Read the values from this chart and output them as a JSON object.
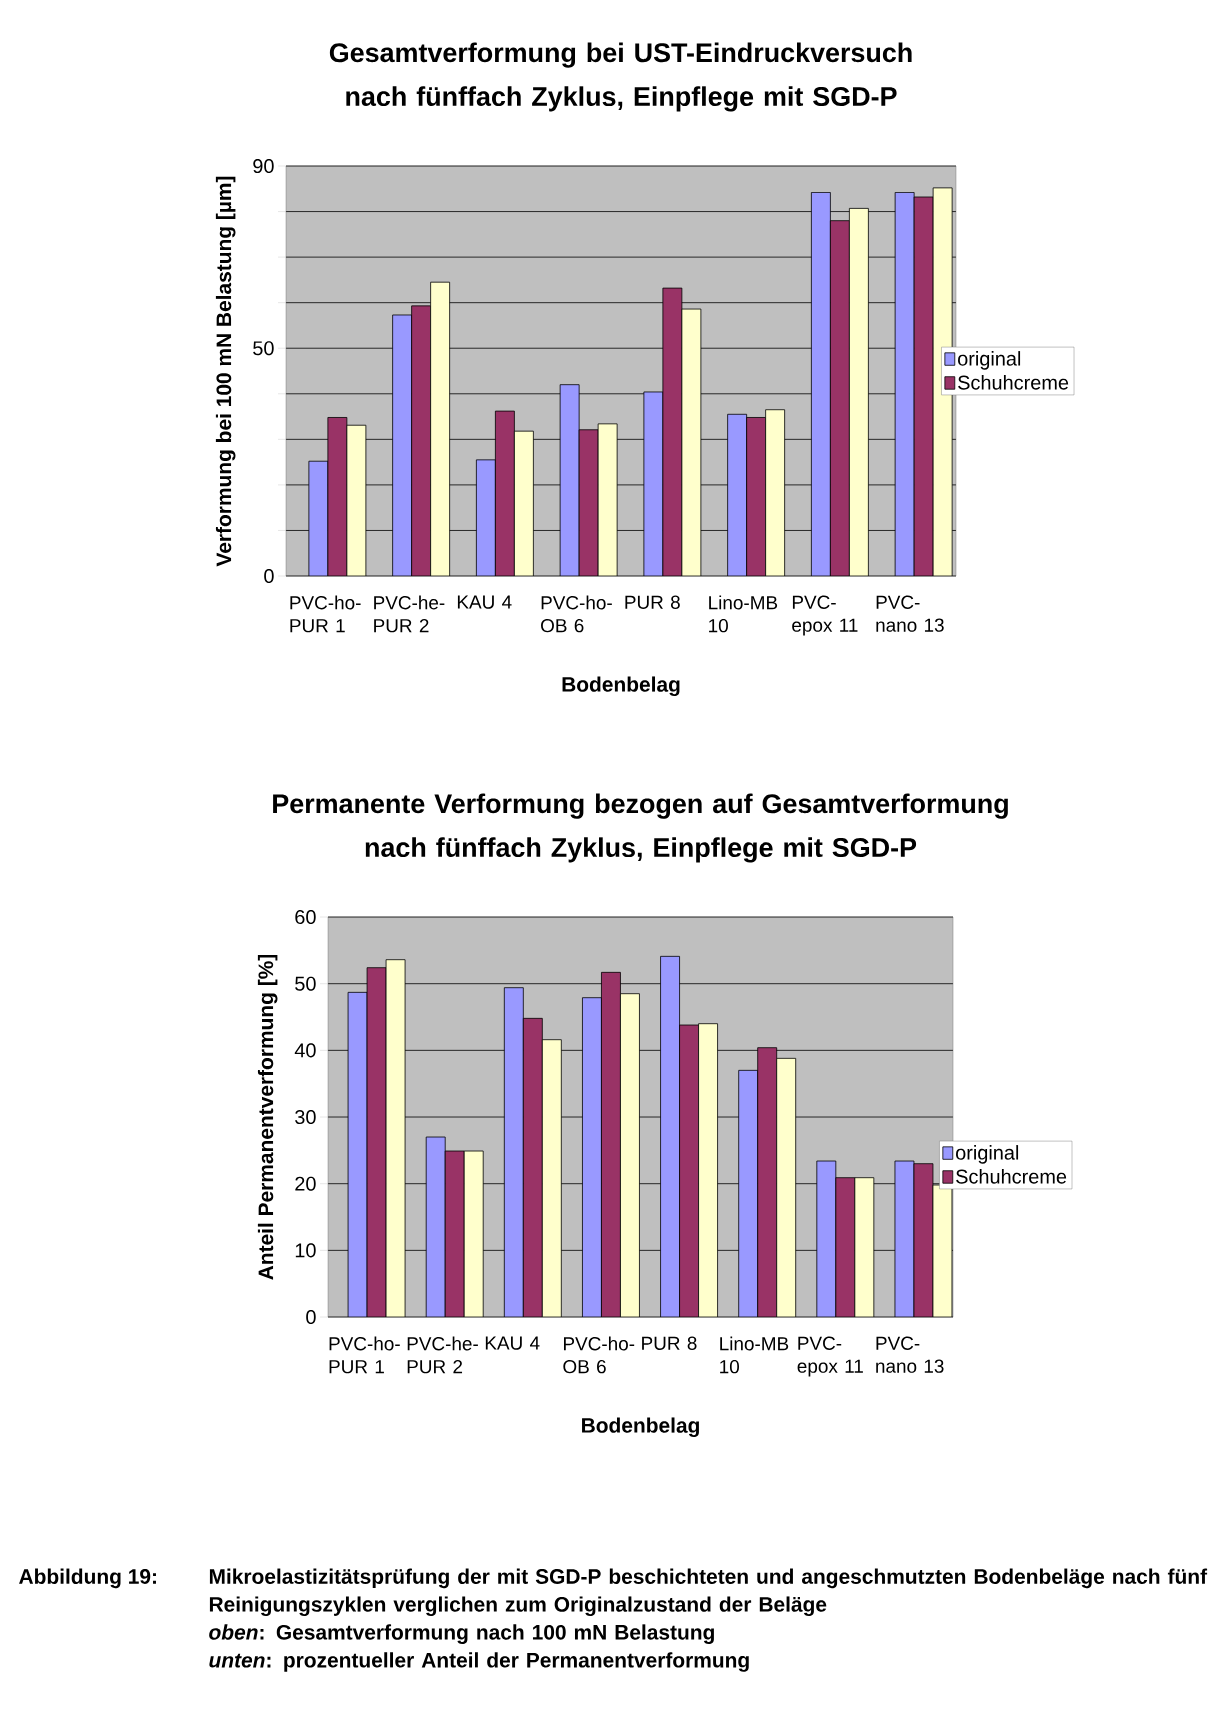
{
  "chart_data": [
    {
      "type": "bar",
      "title": "Gesamtverformung bei UST-Eindruckversuch nach fünffach Zyklus, Einpflege mit SGD-P",
      "xlabel": "Bodenbelag",
      "ylabel": "Verformung bei 100 mN Belastung [µm]",
      "categories": [
        "PVC-ho-PUR 1",
        "PVC-he-PUR 2",
        "KAU 4",
        "PVC-ho-OB 6",
        "PUR 8",
        "Lino-MB 10",
        "PVC-epox 11",
        "PVC-nano 13"
      ],
      "series": [
        {
          "name": "original",
          "color": "#9999ff",
          "values": [
            25.2,
            57.3,
            25.5,
            42.0,
            40.4,
            35.5,
            84.2,
            84.2
          ]
        },
        {
          "name": "Schuhcreme",
          "color": "#993366",
          "values": [
            34.8,
            59.3,
            36.2,
            32.1,
            63.2,
            34.8,
            78.0,
            83.2
          ]
        },
        {
          "color": "#ffffcc",
          "values": [
            33.1,
            64.5,
            31.8,
            33.4,
            58.6,
            36.5,
            80.7,
            85.2
          ]
        }
      ],
      "ylim": [
        0,
        90
      ],
      "yticks": [
        0,
        {
          "value": 10,
          "label": null
        },
        {
          "value": 20,
          "label": null
        },
        {
          "value": 30,
          "label": null
        },
        {
          "value": 40,
          "label": null
        },
        50,
        {
          "value": 60,
          "label": null
        },
        {
          "value": 70,
          "label": null
        },
        {
          "value": 80,
          "label": null
        },
        90
      ],
      "grid": "y",
      "legend": "right"
    },
    {
      "type": "bar",
      "title": "Permanente Verformung bezogen auf Gesamtverformung nach fünffach Zyklus, Einpflege mit SGD-P",
      "xlabel": "Bodenbelag",
      "ylabel": "Anteil Permanentverformung [%]",
      "categories": [
        "PVC-ho-PUR 1",
        "PVC-he-PUR 2",
        "KAU 4",
        "PVC-ho-OB 6",
        "PUR 8",
        "Lino-MB 10",
        "PVC-epox 11",
        "PVC-nano 13"
      ],
      "series": [
        {
          "name": "original",
          "color": "#9999ff",
          "values": [
            48.7,
            27.0,
            49.4,
            47.9,
            54.1,
            37.0,
            23.4,
            23.4
          ]
        },
        {
          "name": "Schuhcreme",
          "color": "#993366",
          "values": [
            52.4,
            24.9,
            44.8,
            51.7,
            43.8,
            40.4,
            20.9,
            23.0
          ]
        },
        {
          "color": "#ffffcc",
          "values": [
            53.6,
            24.9,
            41.6,
            48.5,
            44.0,
            38.8,
            20.9,
            19.8
          ]
        }
      ],
      "ylim": [
        0,
        60
      ],
      "yticks": [
        0,
        10,
        20,
        30,
        40,
        50,
        60
      ],
      "grid": "y",
      "legend": "right",
      "annotations": [
        "Abbildung 19:",
        "Mikroelastizitätsprüfung der mit SGD-P beschichteten und angeschmutzten Bodenbeläge nach fünf Reinigungszyklen verglichen zum Originalzustand der Beläge",
        "*oben*: Gesamtverformung nach 100 mN Belastung",
        "*unten*: prozentueller Anteil der Permanentverformung"
      ]
    }
  ]
}
